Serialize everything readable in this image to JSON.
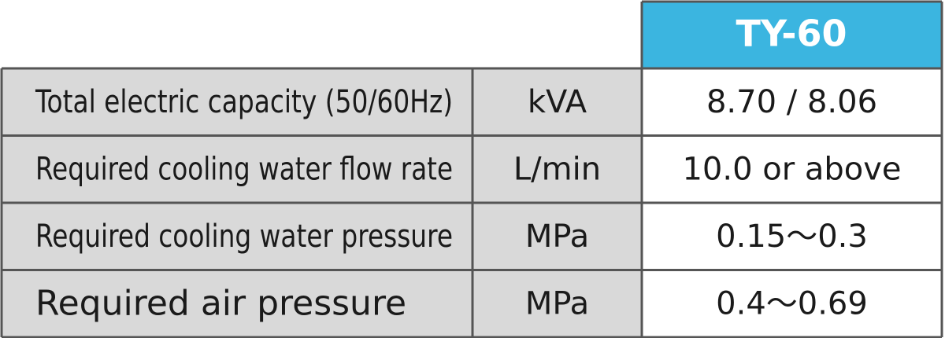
{
  "table": {
    "model": "TY-60",
    "rows": [
      [
        "Total electric capacity (50/60Hz)",
        "kVA",
        "8.70 / 8.06"
      ],
      [
        "Required cooling water flow rate",
        "L/min",
        "10.0 or above"
      ],
      [
        "Required cooling water pressure",
        "MPa",
        "0.15～0.3"
      ],
      [
        "Required air pressure",
        "MPa",
        "0.4～0.69"
      ]
    ]
  }
}
